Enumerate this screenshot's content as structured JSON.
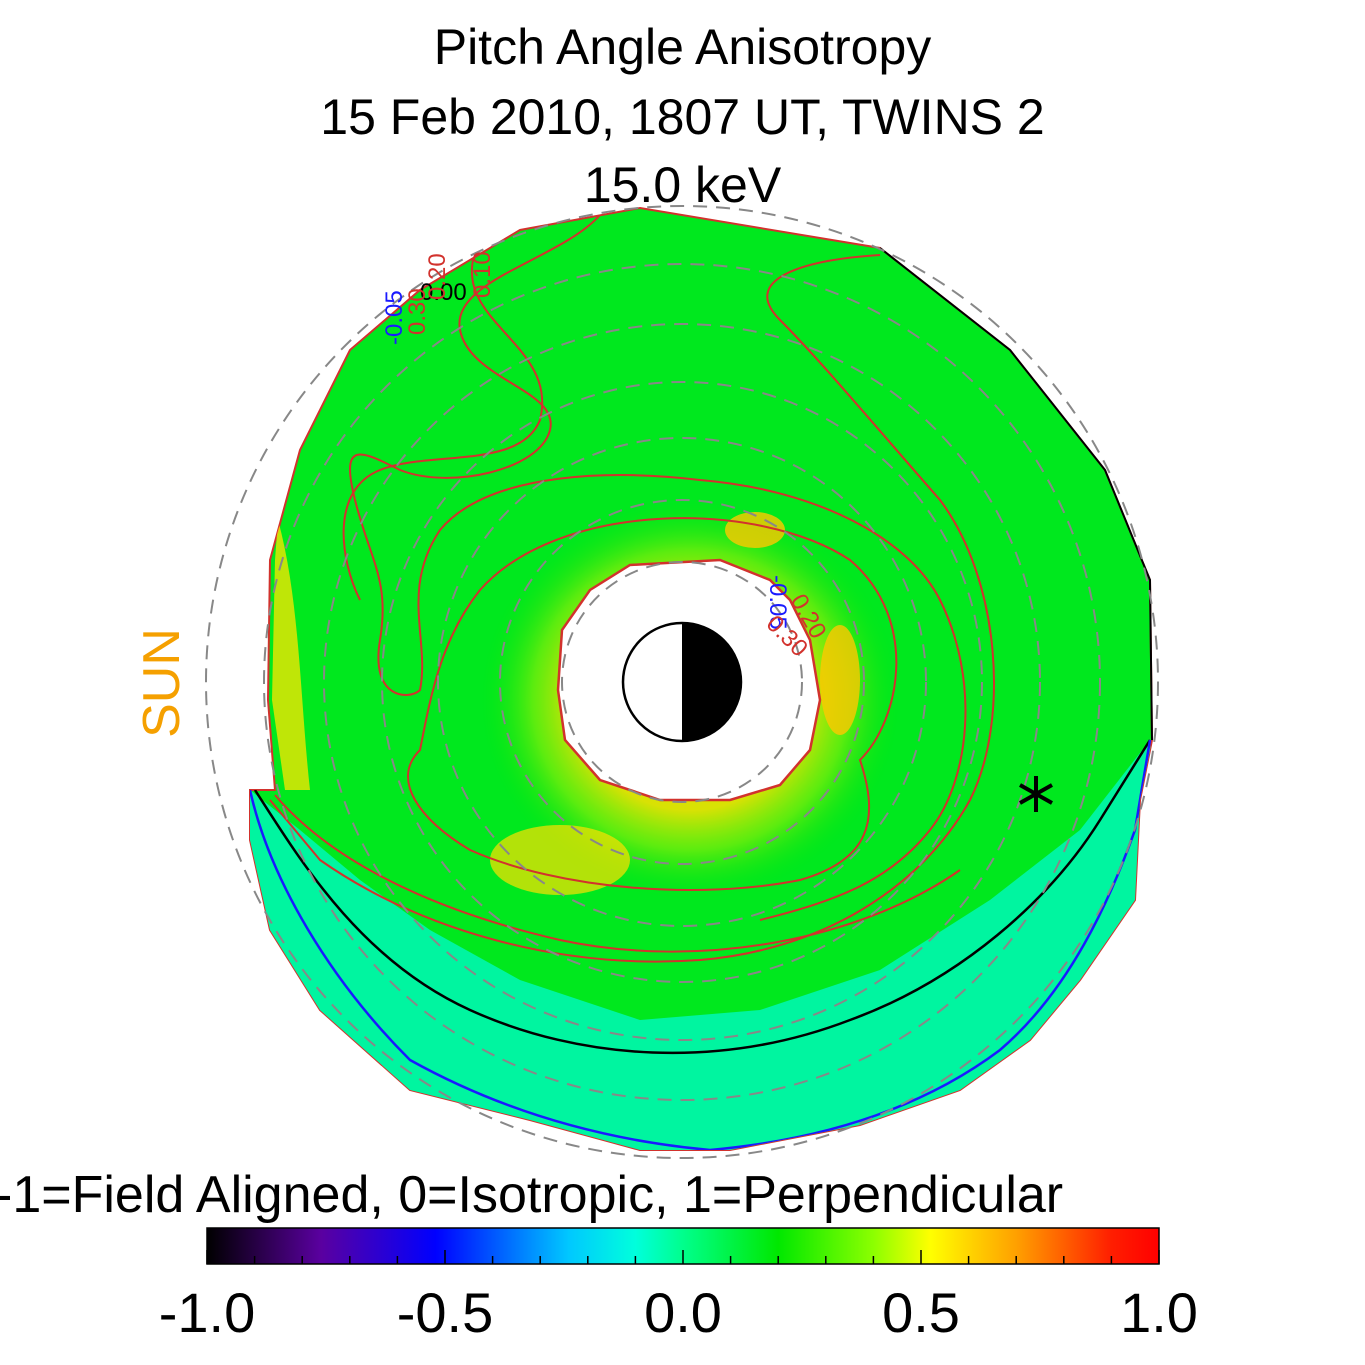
{
  "title": {
    "line1": "Pitch Angle Anisotropy",
    "line2": "15 Feb 2010, 1807 UT,  TWINS 2",
    "line3": "15.0 keV"
  },
  "sun_label": "SUN",
  "colorbar": {
    "label": "-1=Field Aligned, 0=Isotropic, 1=Perpendicular",
    "ticks": [
      "-1.0",
      "-0.5",
      "0.0",
      "0.5",
      "1.0"
    ],
    "range": [
      -1.0,
      1.0
    ]
  },
  "contour_labels": [
    "-0.05",
    "0.00",
    "0.30",
    "0.20",
    "0.10",
    "-0.05",
    "0.20",
    "0.30"
  ],
  "chart_data": {
    "type": "heatmap",
    "title": "Pitch Angle Anisotropy",
    "subtitle": "15 Feb 2010, 1807 UT,  TWINS 2",
    "colorbar_range": [
      -1.0,
      1.0
    ],
    "colorbar_ticks": [
      -1.0,
      -0.5,
      0.0,
      0.5,
      1.0
    ],
    "contour_levels": [
      -0.05,
      0.0,
      0.1,
      0.2,
      0.3
    ],
    "colors": {
      "sun": "#f5a000",
      "contour_red": "#d2322d",
      "contour_black": "#000000",
      "contour_blue": "#1a1aff",
      "grid": "#888888"
    }
  }
}
